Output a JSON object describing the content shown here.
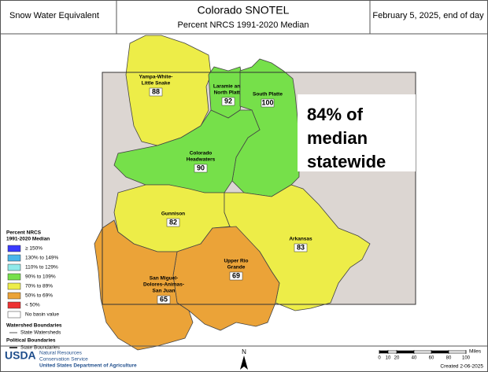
{
  "header": {
    "left": "Snow Water Equivalent",
    "title": "Colorado SNOTEL",
    "subtitle": "Percent NRCS 1991-2020 Median",
    "date": "February 5, 2025, end of day"
  },
  "basins": [
    {
      "label": [
        "Yampa-White-",
        "Little Snake"
      ],
      "value": 88,
      "color": "#eded48"
    },
    {
      "label": [
        "Laramie and",
        "North Platte"
      ],
      "value": 92,
      "color": "#76e04a"
    },
    {
      "label": [
        "South Platte"
      ],
      "value": 100,
      "color": "#76e04a"
    },
    {
      "label": [
        "Colorado",
        "Headwaters"
      ],
      "value": 90,
      "color": "#76e04a"
    },
    {
      "label": [
        "Gunnison"
      ],
      "value": 82,
      "color": "#eded48"
    },
    {
      "label": [
        "Arkansas"
      ],
      "value": 83,
      "color": "#eded48"
    },
    {
      "label": [
        "Upper Rio",
        "Grande"
      ],
      "value": 69,
      "color": "#eba338"
    },
    {
      "label": [
        "San Miguel-",
        "Dolores-Animas-",
        "San Juan"
      ],
      "value": 65,
      "color": "#eba338"
    }
  ],
  "statewide": [
    "84% of",
    "median",
    "statewide"
  ],
  "legend": {
    "title": [
      "Percent NRCS",
      "1991-2020 Median"
    ],
    "items": [
      {
        "label": "≥ 150%",
        "color": "#3a3aff"
      },
      {
        "label": "130% to 149%",
        "color": "#4ab6ea"
      },
      {
        "label": "110% to 129%",
        "color": "#90eaea"
      },
      {
        "label": "90% to 109%",
        "color": "#76e04a"
      },
      {
        "label": "70% to 89%",
        "color": "#eded48"
      },
      {
        "label": "50% to 69%",
        "color": "#eba338"
      },
      {
        "label": "< 50%",
        "color": "#ee3333"
      },
      {
        "label": "No basin value",
        "color": "#ffffff"
      }
    ],
    "watershed_title": "Watershed Boundaries",
    "watershed_item": "State Watersheds",
    "political_title": "Political Boundaries",
    "political_item": "State Boundaries"
  },
  "footer": {
    "usda": "USDA",
    "agency": [
      "Natural Resources",
      "Conservation Service"
    ],
    "department": "United States Department of Agriculture",
    "north": "N",
    "scale": [
      0,
      10,
      20,
      40,
      60,
      80,
      100
    ],
    "scale_unit": "Miles",
    "created": "Created 2-06-2025"
  }
}
